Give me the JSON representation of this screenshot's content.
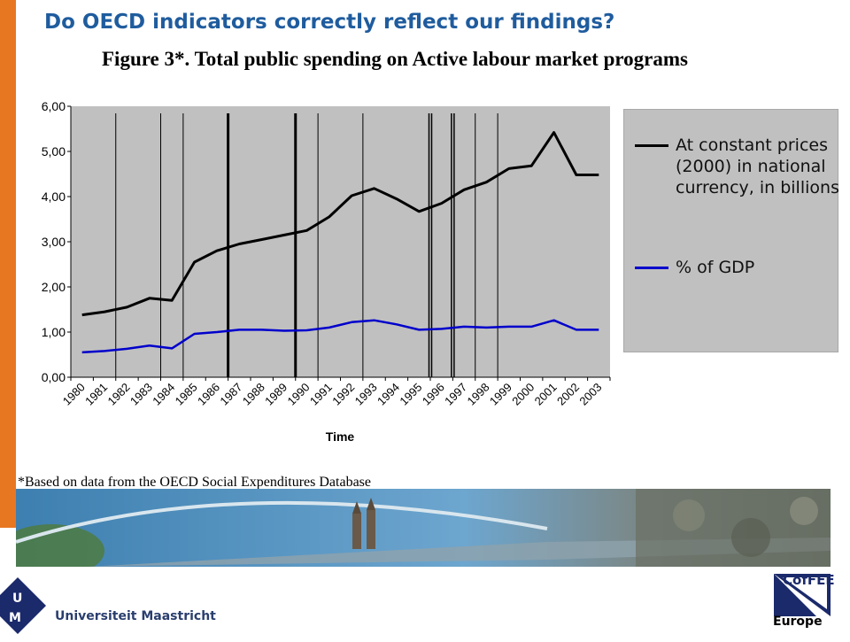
{
  "slide": {
    "title": "Do OECD indicators correctly reflect our findings?",
    "footnote": "*Based on data from the OECD Social Expenditures Database"
  },
  "colors": {
    "side_bar": "#E87722",
    "title": "#1F5C9E",
    "plot_bg": "#C0C0C0",
    "series_constant_prices": "#000000",
    "series_gdp": "#0000CC"
  },
  "logos": {
    "university_name": "Universiteit Maastricht",
    "coffee_name": "CofFEE",
    "coffee_sub": "Europe"
  },
  "chart_data": {
    "type": "line",
    "title": "Figure 3*. Total public spending on Active labour market programs",
    "xlabel": "Time",
    "ylabel": "",
    "ylim": [
      0,
      6
    ],
    "y_ticks": [
      "0,00",
      "1,00",
      "2,00",
      "3,00",
      "4,00",
      "5,00",
      "6,00"
    ],
    "x": [
      "1980",
      "1981",
      "1982",
      "1983",
      "1984",
      "1985",
      "1986",
      "1987",
      "1988",
      "1989",
      "1990",
      "1991",
      "1992",
      "1993",
      "1994",
      "1995",
      "1996",
      "1997",
      "1998",
      "1999",
      "2000",
      "2001",
      "2002",
      "2003"
    ],
    "series": [
      {
        "name": "At constant prices (2000) in national currency, in billions",
        "color": "#000000",
        "values": [
          1.38,
          1.45,
          1.55,
          1.75,
          1.7,
          2.55,
          2.8,
          2.95,
          3.05,
          3.15,
          3.25,
          3.55,
          4.02,
          4.18,
          3.95,
          3.67,
          3.85,
          4.15,
          4.32,
          4.62,
          4.68,
          5.42,
          4.48,
          4.48
        ]
      },
      {
        "name": "% of GDP",
        "color": "#0000CC",
        "values": [
          0.55,
          0.58,
          0.63,
          0.7,
          0.64,
          0.96,
          1.0,
          1.05,
          1.05,
          1.03,
          1.04,
          1.1,
          1.22,
          1.26,
          1.17,
          1.05,
          1.07,
          1.12,
          1.1,
          1.12,
          1.12,
          1.26,
          1.05,
          1.05
        ]
      }
    ],
    "vertical_markers": [
      {
        "after": "1981",
        "style": "thin"
      },
      {
        "after": "1983",
        "style": "thin"
      },
      {
        "after": "1984",
        "style": "thin"
      },
      {
        "after": "1986",
        "style": "thick"
      },
      {
        "after": "1989",
        "style": "thick"
      },
      {
        "after": "1990",
        "style": "thin"
      },
      {
        "after": "1992",
        "style": "thin"
      },
      {
        "after": "1995",
        "style": "double"
      },
      {
        "after": "1996",
        "style": "double"
      },
      {
        "after": "1997",
        "style": "thin"
      },
      {
        "after": "1998",
        "style": "thin"
      }
    ],
    "grid": false,
    "legend_position": "right"
  }
}
